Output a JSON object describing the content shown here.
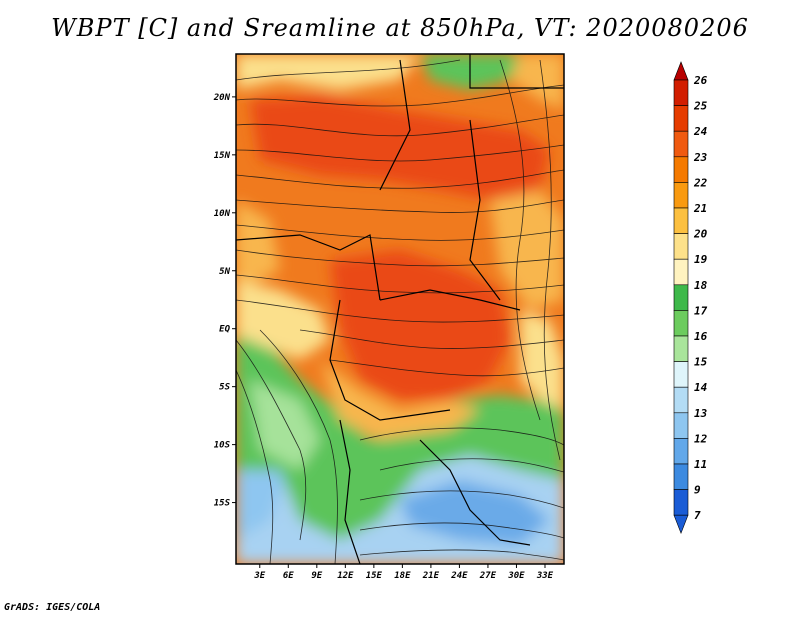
{
  "title": "WBPT [C] and Sreamline at 850hPa, VT: 2020080206",
  "footer": "GrADS: IGES/COLA",
  "map": {
    "lat_labels": [
      "20N",
      "15N",
      "10N",
      "5N",
      "EQ",
      "5S",
      "10S",
      "15S"
    ],
    "lon_labels": [
      "3E",
      "6E",
      "9E",
      "12E",
      "15E",
      "18E",
      "21E",
      "24E",
      "27E",
      "30E",
      "33E"
    ],
    "lat_values": [
      20,
      15,
      10,
      5,
      0,
      -5,
      -10,
      -15
    ],
    "lon_values": [
      3,
      6,
      9,
      12,
      15,
      18,
      21,
      24,
      27,
      30,
      33
    ],
    "lat_range": [
      -20.3,
      23.7
    ],
    "lon_range": [
      0.5,
      35
    ]
  },
  "colorbar": {
    "labels": [
      "26",
      "25",
      "24",
      "23",
      "22",
      "21",
      "20",
      "19",
      "18",
      "17",
      "16",
      "15",
      "14",
      "13",
      "12",
      "11",
      "9",
      "7"
    ],
    "colors": [
      "#b80000",
      "#d21e00",
      "#e63c00",
      "#f05a10",
      "#f57a00",
      "#f99a10",
      "#fcc040",
      "#fde18a",
      "#fff3c0",
      "#3eb94a",
      "#6ccc5e",
      "#a9e59b",
      "#dff5fb",
      "#b3dcf5",
      "#8ec6f0",
      "#62a8ea",
      "#3c8ae0",
      "#1a5cd6"
    ]
  },
  "field_colors": {
    "hot": "#ea4a14",
    "warm": "#f07a1e",
    "mild": "#f8b64e",
    "pale": "#fbe08c",
    "green": "#5cc45a",
    "lightgreen": "#a6e29a",
    "lightblue": "#a8d2f2",
    "blue": "#6aaae8"
  }
}
